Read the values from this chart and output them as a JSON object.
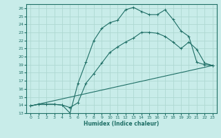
{
  "xlabel": "Humidex (Indice chaleur)",
  "background_color": "#c8ece9",
  "grid_color": "#aed8d2",
  "line_color": "#1e6e65",
  "xlim": [
    -0.5,
    23.5
  ],
  "ylim": [
    13,
    26.5
  ],
  "xticks": [
    0,
    1,
    2,
    3,
    4,
    5,
    6,
    7,
    8,
    9,
    10,
    11,
    12,
    13,
    14,
    15,
    16,
    17,
    18,
    19,
    20,
    21,
    22,
    23
  ],
  "yticks": [
    13,
    14,
    15,
    16,
    17,
    18,
    19,
    20,
    21,
    22,
    23,
    24,
    25,
    26
  ],
  "line1_x": [
    0,
    1,
    2,
    3,
    4,
    5,
    6,
    7,
    8,
    9,
    10,
    11,
    12,
    13,
    14,
    15,
    16,
    17,
    18,
    19,
    20,
    21,
    22,
    23
  ],
  "line1_y": [
    13.9,
    14.1,
    14.1,
    14.1,
    14.0,
    13.0,
    16.7,
    19.3,
    22.0,
    23.5,
    24.2,
    24.5,
    25.8,
    26.1,
    25.6,
    25.2,
    25.2,
    25.8,
    24.6,
    23.2,
    22.5,
    19.3,
    19.0,
    18.9
  ],
  "line2_x": [
    0,
    1,
    2,
    3,
    4,
    5,
    6,
    7,
    8,
    9,
    10,
    11,
    12,
    13,
    14,
    15,
    16,
    17,
    18,
    19,
    20,
    21,
    22,
    23
  ],
  "line2_y": [
    13.9,
    14.1,
    14.1,
    14.1,
    14.0,
    13.7,
    14.3,
    16.7,
    17.9,
    19.2,
    20.5,
    21.2,
    21.8,
    22.3,
    23.0,
    23.0,
    22.9,
    22.5,
    21.8,
    21.0,
    21.8,
    20.9,
    19.2,
    18.9
  ],
  "line3_x": [
    0,
    23
  ],
  "line3_y": [
    13.9,
    18.9
  ]
}
